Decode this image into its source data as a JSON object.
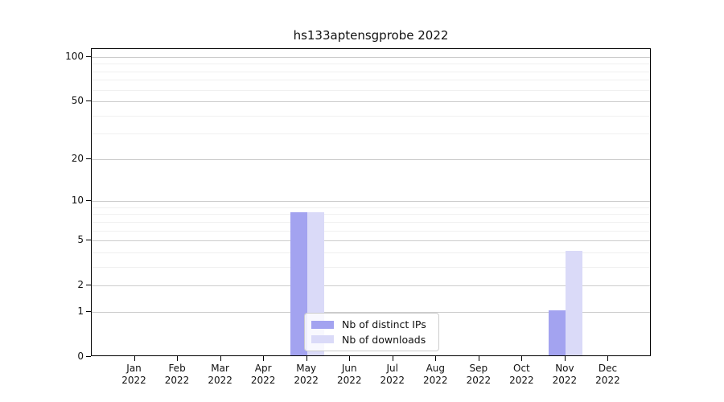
{
  "chart_data": {
    "type": "bar",
    "title": "hs133aptensgprobe 2022",
    "categories": [
      "Jan 2022",
      "Feb 2022",
      "Mar 2022",
      "Apr 2022",
      "May 2022",
      "Jun 2022",
      "Jul 2022",
      "Aug 2022",
      "Sep 2022",
      "Oct 2022",
      "Nov 2022",
      "Dec 2022"
    ],
    "month_labels": [
      "Jan",
      "Feb",
      "Mar",
      "Apr",
      "May",
      "Jun",
      "Jul",
      "Aug",
      "Sep",
      "Oct",
      "Nov",
      "Dec"
    ],
    "year_label": "2022",
    "series": [
      {
        "name": "Nb of distinct IPs",
        "color": "#a3a3f0",
        "values": [
          0,
          0,
          0,
          0,
          8,
          0,
          0,
          0,
          0,
          0,
          1,
          0
        ]
      },
      {
        "name": "Nb of downloads",
        "color": "#dadaf8",
        "values": [
          0,
          0,
          0,
          0,
          8,
          0,
          0,
          0,
          0,
          0,
          4,
          0
        ]
      }
    ],
    "xlabel": "",
    "ylabel": "",
    "y_axis": {
      "scale": "log1p",
      "ticks": [
        0,
        1,
        2,
        5,
        10,
        20,
        50,
        100
      ],
      "minor_gridlines": [
        3,
        4,
        6,
        7,
        8,
        9,
        30,
        40,
        60,
        70,
        80,
        90
      ],
      "ylim": [
        0,
        113
      ]
    },
    "grid": "on",
    "legend": {
      "position": "lower center",
      "entries": [
        "Nb of distinct IPs",
        "Nb of downloads"
      ]
    },
    "colors": {
      "major_grid": "#cccccc",
      "minor_grid": "#f0f0f0",
      "spine": "#000000",
      "text": "#111111"
    }
  }
}
